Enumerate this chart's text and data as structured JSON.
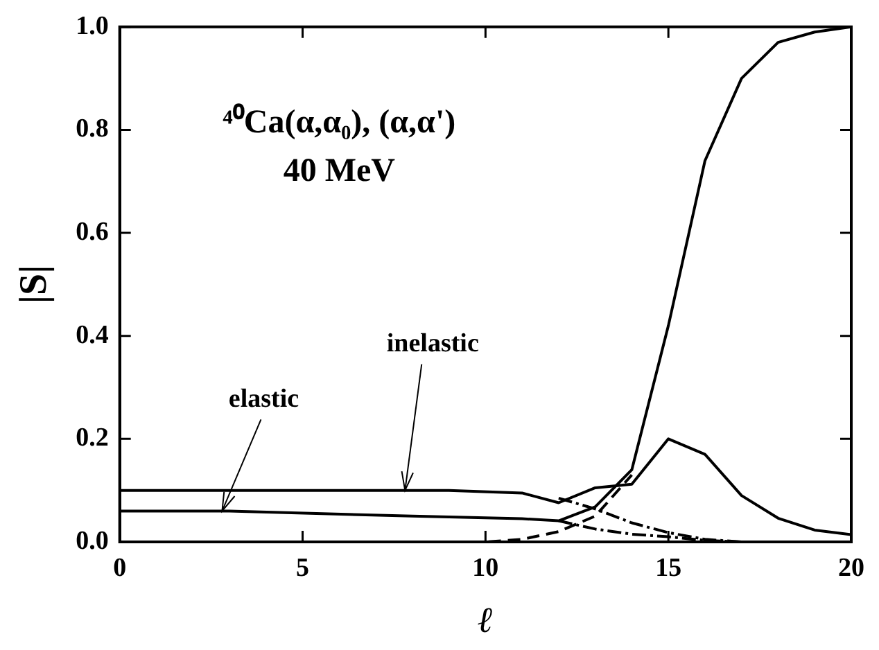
{
  "chart_data": {
    "type": "line",
    "title": "⁴⁰Ca(α,α₀), (α,α')",
    "subtitle": "40 MeV",
    "xlabel": "ℓ",
    "ylabel": "|S|",
    "series": [
      {
        "color": "#000000",
        "line_style": "solid",
        "x": [
          0,
          3,
          8,
          11,
          12,
          13,
          14,
          15,
          16,
          17,
          18,
          19,
          20
        ],
        "values": [
          0.06,
          0.06,
          0.05,
          0.045,
          0.041,
          0.068,
          0.14,
          0.42,
          0.74,
          0.9,
          0.97,
          0.99,
          1.0
        ]
      },
      {
        "color": "#000000",
        "line_style": "solid",
        "x": [
          0,
          9,
          11,
          12,
          13,
          14,
          15,
          16,
          17,
          18,
          19,
          20
        ],
        "values": [
          0.1,
          0.1,
          0.095,
          0.076,
          0.105,
          0.112,
          0.2,
          0.17,
          0.09,
          0.046,
          0.023,
          0.014
        ]
      },
      {
        "color": "#000000",
        "line_style": "dotted",
        "x": [
          12,
          13,
          14,
          15,
          16,
          17,
          20
        ],
        "values": [
          0.085,
          0.064,
          0.037,
          0.018,
          0.005,
          0.0,
          0.0
        ]
      },
      {
        "color": "#000000",
        "line_style": "dotted",
        "x": [
          12,
          13,
          14,
          15,
          16,
          17
        ],
        "values": [
          0.041,
          0.025,
          0.015,
          0.01,
          0.003,
          0.0
        ]
      },
      {
        "color": "#000000",
        "line_style": "dashed",
        "x": [
          0,
          10,
          11,
          12,
          13,
          14
        ],
        "values": [
          0.0,
          0.0,
          0.005,
          0.02,
          0.05,
          0.13
        ]
      }
    ],
    "xlim": [
      0,
      20
    ],
    "xticks": [
      0,
      5,
      10,
      15,
      20
    ],
    "ylim": [
      0,
      1
    ],
    "yticks": [
      {
        "value": 0,
        "label": "0.0"
      },
      {
        "value": 0.2,
        "label": "0.2"
      },
      {
        "value": 0.4,
        "label": "0.4"
      },
      {
        "value": 0.6,
        "label": "0.6"
      },
      {
        "value": 0.8,
        "label": "0.8"
      },
      {
        "value": 1,
        "label": "1.0"
      }
    ],
    "annotations": [
      {
        "text": "elastic",
        "x": 2.8,
        "y": 0.06
      },
      {
        "text": "inelastic",
        "x": 7.8,
        "y": 0.1
      }
    ],
    "grid": false,
    "legend": false,
    "marker": "none"
  }
}
